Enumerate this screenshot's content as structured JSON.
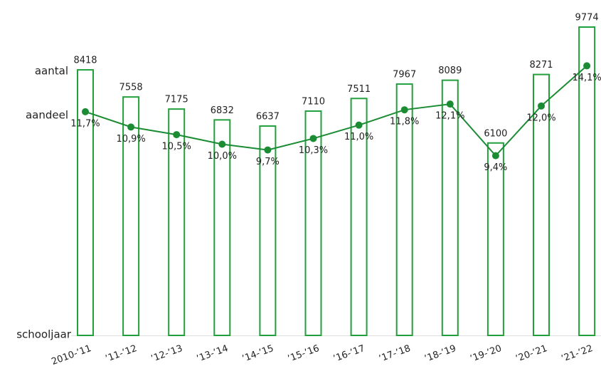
{
  "chart_data": {
    "type": "bar-line",
    "labels": {
      "bars": "aantal",
      "line": "aandeel",
      "x": "schooljaar"
    },
    "categories": [
      "2010-’11",
      "’11-’12",
      "’12-’13",
      "’13-’14",
      "’14-’15",
      "’15-’16",
      "’16-’17",
      "’17-’18",
      "’18-’19",
      "’19-’20",
      "’20-’21",
      "’21-’22"
    ],
    "series": [
      {
        "name": "aantal",
        "type": "bar",
        "color": "#22a03c",
        "values": [
          8418,
          7558,
          7175,
          6832,
          6637,
          7110,
          7511,
          7967,
          8089,
          6100,
          8271,
          9774
        ]
      },
      {
        "name": "aandeel",
        "type": "line",
        "axis": "y2",
        "color": "#1b8c33",
        "values": [
          11.7,
          10.9,
          10.5,
          10.0,
          9.7,
          10.3,
          11.0,
          11.8,
          12.1,
          9.4,
          12.0,
          14.1
        ],
        "value_labels": [
          "11,7%",
          "10,9%",
          "10,5%",
          "10,0%",
          "9,7%",
          "10,3%",
          "11,0%",
          "11,8%",
          "12,1%",
          "9,4%",
          "12,0%",
          "14,1%"
        ]
      }
    ],
    "ylim": [
      0,
      10000
    ],
    "y2lim": [
      0,
      16.5
    ]
  }
}
